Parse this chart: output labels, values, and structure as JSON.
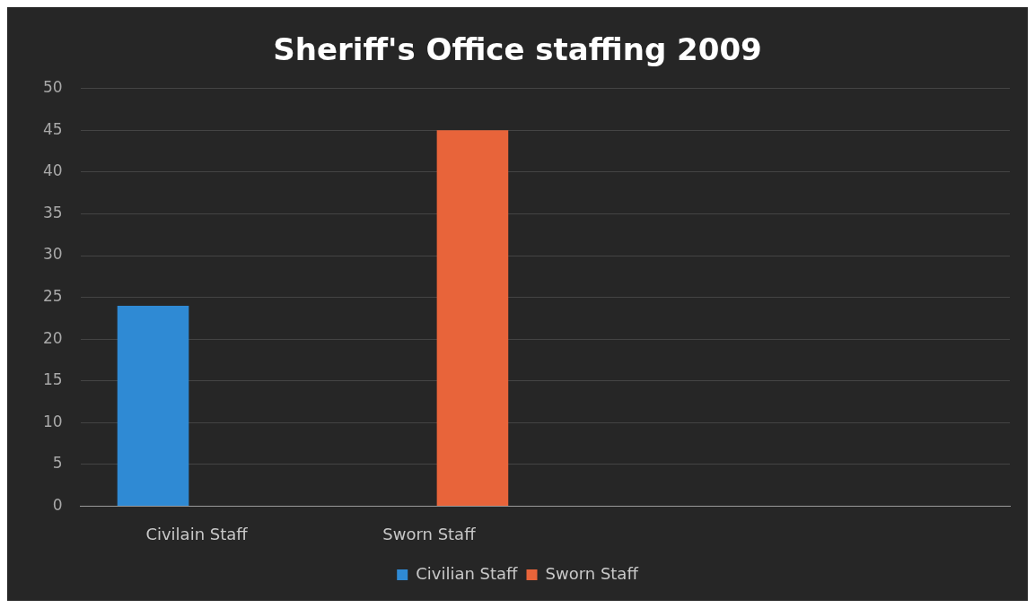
{
  "chart_data": {
    "type": "bar",
    "title": "Sheriff's Office staffing 2009",
    "categories": [
      "Civilain Staff",
      "Sworn Staff",
      null,
      null
    ],
    "series": [
      {
        "name": "Civilian Staff",
        "color": "#2f8ad4",
        "values": [
          24,
          null,
          null,
          null
        ]
      },
      {
        "name": "Sworn Staff",
        "color": "#e8643a",
        "values": [
          null,
          45,
          null,
          null
        ]
      }
    ],
    "ylim": [
      0,
      50
    ],
    "yticks": [
      0,
      5,
      10,
      15,
      20,
      25,
      30,
      35,
      40,
      45,
      50
    ],
    "grid": "y",
    "legend": "bottom"
  }
}
